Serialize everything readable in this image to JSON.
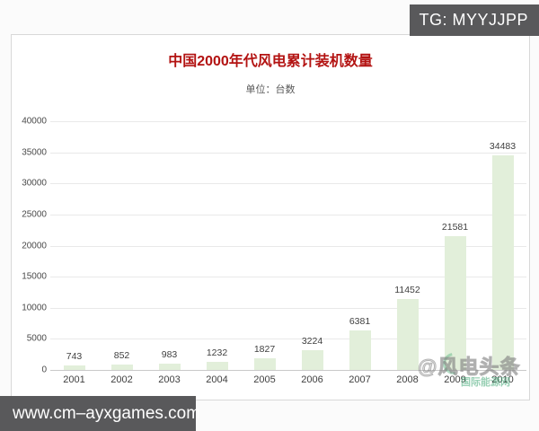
{
  "overlays": {
    "tg_badge": "TG: MYYJJPP",
    "url_bar": "www.cm–ayxgames.com"
  },
  "watermark": {
    "text": "@风电头条",
    "subtext": "国际能源网"
  },
  "chart_data": {
    "type": "bar",
    "title": "中国2000年代风电累计装机数量",
    "subtitle": "单位：台数",
    "categories": [
      "2001",
      "2002",
      "2003",
      "2004",
      "2005",
      "2006",
      "2007",
      "2008",
      "2009",
      "2010"
    ],
    "values": [
      743,
      852,
      983,
      1232,
      1827,
      3224,
      6381,
      11452,
      21581,
      34483
    ],
    "xlabel": "",
    "ylabel": "",
    "ylim": [
      0,
      40000
    ],
    "ytick_step": 5000,
    "grid": true,
    "legend": "none",
    "bar_color": "#e2efda",
    "title_color": "#b31312",
    "subtitle_color": "#595959"
  }
}
